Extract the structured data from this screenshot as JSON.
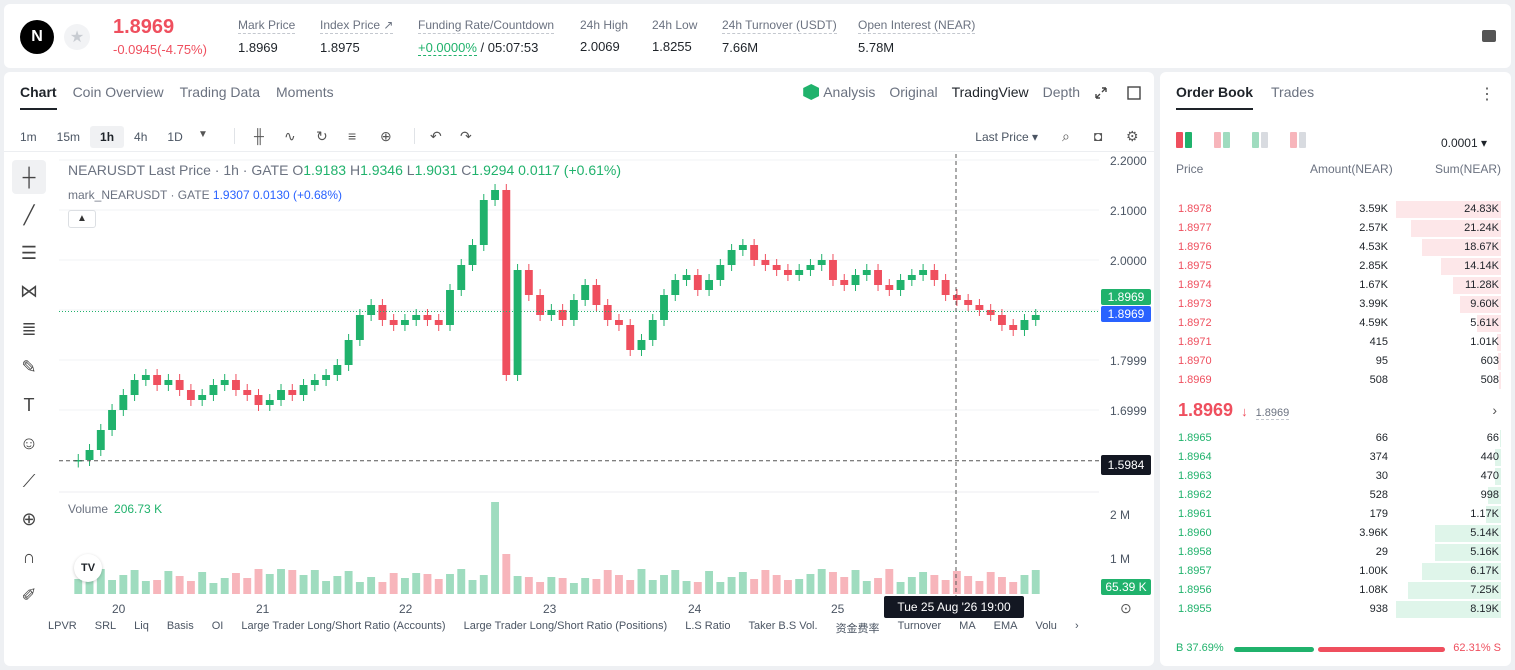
{
  "header": {
    "logo_text": "N",
    "last_price": "1.8969",
    "change": "-0.0945(-4.75%)",
    "stats": [
      {
        "label": "Mark Price",
        "value": "1.8969"
      },
      {
        "label": "Index Price ↗",
        "value": "1.8975"
      },
      {
        "label": "Funding Rate/Countdown",
        "value_green": "+0.0000%",
        "value_rest": " / 05:07:53"
      },
      {
        "label": "24h High",
        "value": "2.0069"
      },
      {
        "label": "24h Low",
        "value": "1.8255"
      },
      {
        "label": "24h Turnover (USDT)",
        "value": "7.66M"
      },
      {
        "label": "Open Interest (NEAR)",
        "value": "5.78M"
      }
    ]
  },
  "chart_tabs": [
    "Chart",
    "Coin Overview",
    "Trading Data",
    "Moments"
  ],
  "view_tabs": {
    "analysis": "Analysis",
    "original": "Original",
    "tradingview": "TradingView",
    "depth": "Depth"
  },
  "timeframes": [
    "1m",
    "15m",
    "1h",
    "4h",
    "1D"
  ],
  "active_timeframe": "1h",
  "last_price_select": "Last Price",
  "legend": {
    "symbol": "NEARUSDT Last Price · 1h · GATE",
    "o_label": "O",
    "o": "1.9183",
    "h_label": "H",
    "h": "1.9346",
    "l_label": "L",
    "l": "1.9031",
    "c_label": "C",
    "c": "1.9294",
    "chg": "0.0117 (+0.61%)",
    "mark_label": "mark_NEARUSDT · GATE",
    "mark_values": "1.9307  0.0130 (+0.68%)"
  },
  "y_axis": [
    "2.2000",
    "2.1000",
    "2.0000",
    "1.7999",
    "1.6999"
  ],
  "price_tags": {
    "last": "1.8969",
    "mark": "1.8969",
    "cursor": "1.5984",
    "volume": "65.39 K"
  },
  "volume": {
    "label": "Volume",
    "value": "206.73 K",
    "axis": [
      "2 M",
      "1 M"
    ]
  },
  "x_axis": [
    "20",
    "21",
    "22",
    "23",
    "24",
    "25"
  ],
  "crosshair_time": "Tue 25 Aug '26   19:00",
  "bottom_indicators": [
    "LPVR",
    "SRL",
    "Liq",
    "Basis",
    "OI",
    "Large Trader Long/Short Ratio (Accounts)",
    "Large Trader Long/Short Ratio (Positions)",
    "L.S Ratio",
    "Taker B.S Vol.",
    "资金费率",
    "Turnover",
    "MA",
    "EMA",
    "Volu"
  ],
  "colors": {
    "up": "#20b26c",
    "down": "#ef4f5e",
    "mark": "#2962ff"
  },
  "order_book": {
    "tabs": [
      "Order Book",
      "Trades"
    ],
    "precision": "0.0001",
    "headers": {
      "price": "Price",
      "amount": "Amount(NEAR)",
      "sum": "Sum(NEAR)"
    },
    "asks": [
      {
        "price": "1.8978",
        "amount": "3.59K",
        "sum": "24.83K",
        "depth": 1.0
      },
      {
        "price": "1.8977",
        "amount": "2.57K",
        "sum": "21.24K",
        "depth": 0.855
      },
      {
        "price": "1.8976",
        "amount": "4.53K",
        "sum": "18.67K",
        "depth": 0.752
      },
      {
        "price": "1.8975",
        "amount": "2.85K",
        "sum": "14.14K",
        "depth": 0.569
      },
      {
        "price": "1.8974",
        "amount": "1.67K",
        "sum": "11.28K",
        "depth": 0.454
      },
      {
        "price": "1.8973",
        "amount": "3.99K",
        "sum": "9.60K",
        "depth": 0.387
      },
      {
        "price": "1.8972",
        "amount": "4.59K",
        "sum": "5.61K",
        "depth": 0.226
      },
      {
        "price": "1.8971",
        "amount": "415",
        "sum": "1.01K",
        "depth": 0.041
      },
      {
        "price": "1.8970",
        "amount": "95",
        "sum": "603",
        "depth": 0.024
      },
      {
        "price": "1.8969",
        "amount": "508",
        "sum": "508",
        "depth": 0.02
      }
    ],
    "mid_price": "1.8969",
    "mid_arrow": "↓",
    "mark_price": "1.8969",
    "bids": [
      {
        "price": "1.8965",
        "amount": "66",
        "sum": "66",
        "depth": 0.008
      },
      {
        "price": "1.8964",
        "amount": "374",
        "sum": "440",
        "depth": 0.054
      },
      {
        "price": "1.8963",
        "amount": "30",
        "sum": "470",
        "depth": 0.057
      },
      {
        "price": "1.8962",
        "amount": "528",
        "sum": "998",
        "depth": 0.122
      },
      {
        "price": "1.8961",
        "amount": "179",
        "sum": "1.17K",
        "depth": 0.143
      },
      {
        "price": "1.8960",
        "amount": "3.96K",
        "sum": "5.14K",
        "depth": 0.628
      },
      {
        "price": "1.8958",
        "amount": "29",
        "sum": "5.16K",
        "depth": 0.63
      },
      {
        "price": "1.8957",
        "amount": "1.00K",
        "sum": "6.17K",
        "depth": 0.753
      },
      {
        "price": "1.8956",
        "amount": "1.08K",
        "sum": "7.25K",
        "depth": 0.885
      },
      {
        "price": "1.8955",
        "amount": "938",
        "sum": "8.19K",
        "depth": 1.0
      }
    ],
    "buy_ratio": "B 37.69%",
    "sell_ratio": "62.31% S",
    "buy_fraction": 0.3769
  }
}
